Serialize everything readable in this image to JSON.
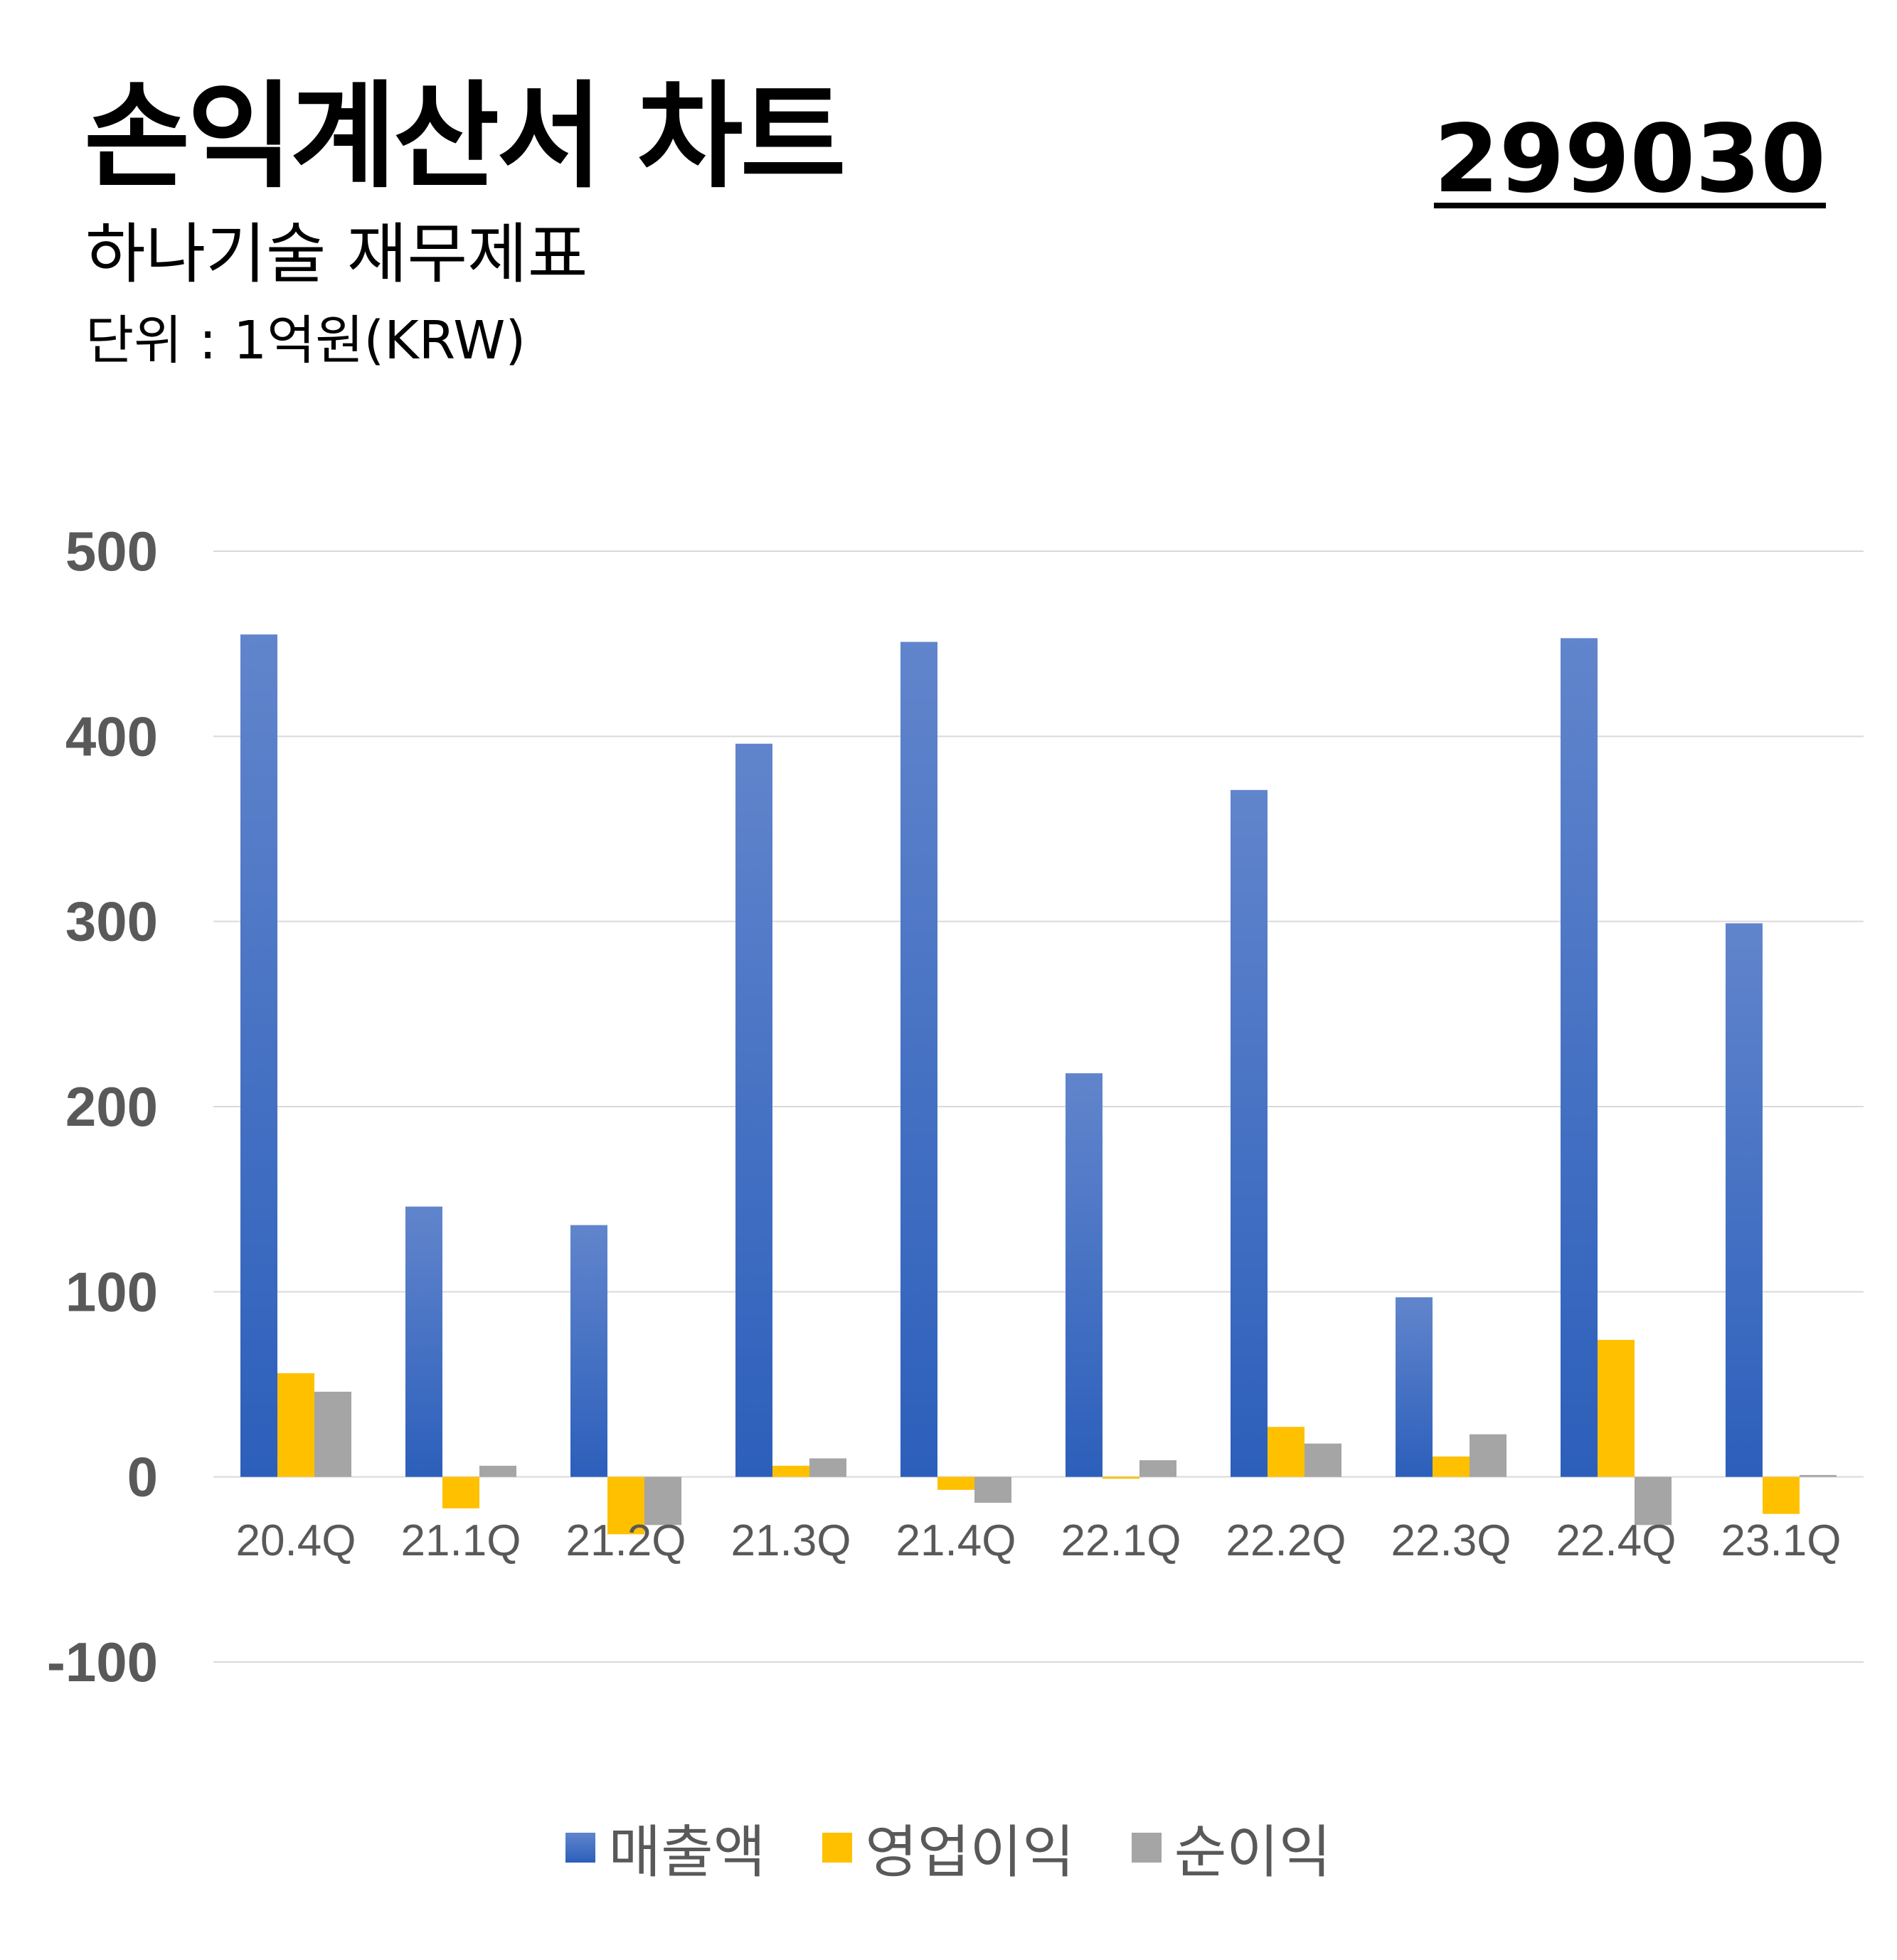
{
  "header": {
    "title": "손익계산서 차트",
    "subtitle": "하나기술 재무제표",
    "unit": "단위 : 1억원(KRW)",
    "code": "299030"
  },
  "colors": {
    "revenue_top": "#6185cc",
    "revenue_bottom": "#2c5fbb",
    "operating": "#ffc000",
    "net": "#a5a5a5",
    "grid": "#d9d9d9",
    "tick": "#595959"
  },
  "chart_data": {
    "type": "bar",
    "categories": [
      "20.4Q",
      "21.1Q",
      "21.2Q",
      "21.3Q",
      "21.4Q",
      "22.1Q",
      "22.2Q",
      "22.3Q",
      "22.4Q",
      "23.1Q"
    ],
    "series": [
      {
        "name": "매출액",
        "values": [
          455,
          146,
          136,
          396,
          451,
          218,
          371,
          97,
          453,
          299
        ]
      },
      {
        "name": "영업이익",
        "values": [
          56,
          -17,
          -31,
          6,
          -7,
          -1,
          27,
          11,
          74,
          -20
        ]
      },
      {
        "name": "순이익",
        "values": [
          46,
          6,
          -26,
          10,
          -14,
          9,
          18,
          23,
          -26,
          1
        ]
      }
    ],
    "yticks": [
      "500",
      "400",
      "300",
      "200",
      "100",
      "0",
      "-100"
    ],
    "ylim": [
      -100,
      500
    ],
    "grid": true,
    "legend": "bottom"
  }
}
